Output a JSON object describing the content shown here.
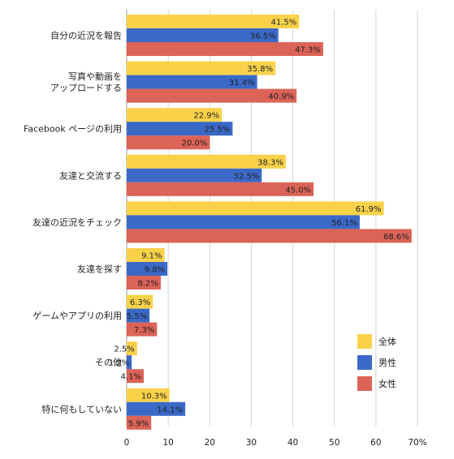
{
  "chart_data": {
    "type": "bar",
    "orientation": "horizontal",
    "title": "",
    "xlabel": "",
    "ylabel": "",
    "xlim": [
      0,
      70
    ],
    "x_ticks": [
      "0",
      "10",
      "20",
      "30",
      "40",
      "50",
      "60",
      "70%"
    ],
    "grid": "vertical",
    "legend_position": "right",
    "categories": [
      [
        "自分の近況を報告"
      ],
      [
        "写真や動画を",
        "アップロードする"
      ],
      [
        "Facebook ページの利用"
      ],
      [
        "友達と交流する"
      ],
      [
        "友達の近況をチェック"
      ],
      [
        "友達を探す"
      ],
      [
        "ゲームやアプリの利用"
      ],
      [
        "その他"
      ],
      [
        "特に何もしていない"
      ]
    ],
    "series": [
      {
        "name": "全体",
        "color": "#f9d24a",
        "values": [
          41.5,
          35.8,
          22.9,
          38.3,
          61.9,
          9.1,
          6.3,
          2.5,
          10.3
        ],
        "labels": [
          "41.5%",
          "35.8%",
          "22.9%",
          "38.3%",
          "61.9%",
          "9.1%",
          "6.3%",
          "2.5%",
          "10.3%"
        ]
      },
      {
        "name": "男性",
        "color": "#3b69c8",
        "values": [
          36.5,
          31.4,
          25.5,
          32.5,
          56.1,
          9.8,
          5.5,
          1.2,
          14.1
        ],
        "labels": [
          "36.5%",
          "31.4%",
          "25.5%",
          "32.5%",
          "56.1%",
          "9.8%",
          "5.5%",
          "1.2%",
          "14.1%"
        ]
      },
      {
        "name": "女性",
        "color": "#dc6357",
        "values": [
          47.3,
          40.9,
          20.0,
          45.0,
          68.6,
          8.2,
          7.3,
          4.1,
          5.9
        ],
        "labels": [
          "47.3%",
          "40.9%",
          "20.0%",
          "45.0%",
          "68.6%",
          "8.2%",
          "7.3%",
          "4.1%",
          "5.9%"
        ]
      }
    ]
  }
}
